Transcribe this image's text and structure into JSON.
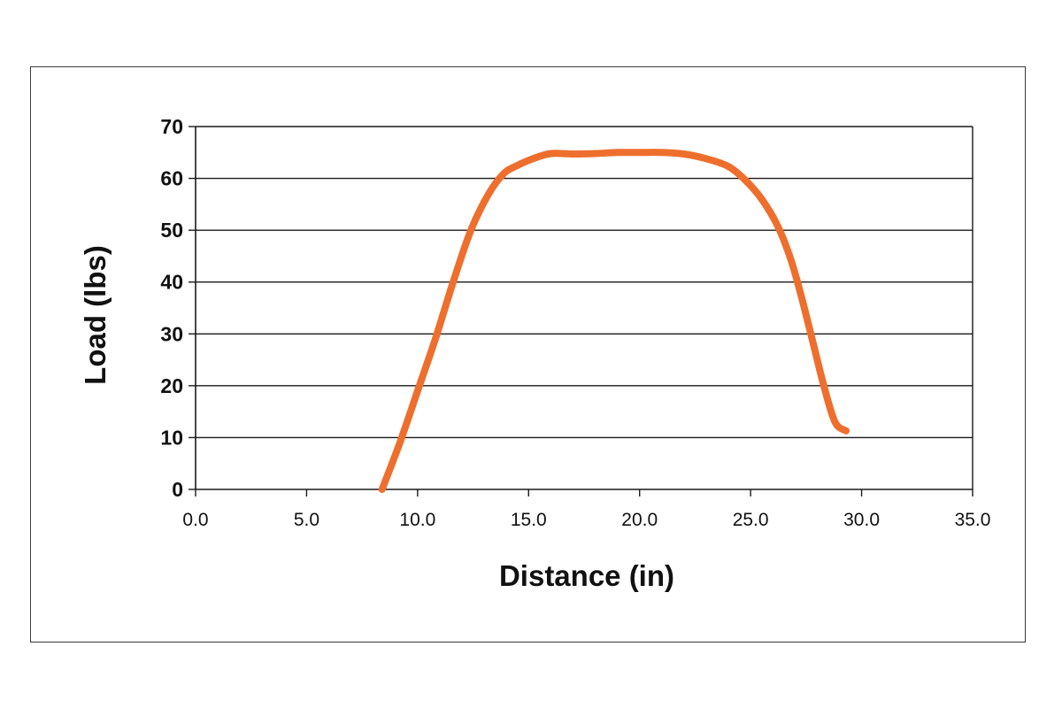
{
  "chart_data": {
    "type": "line",
    "title": "",
    "xlabel": "Distance (in)",
    "ylabel": "Load (lbs)",
    "xlim": [
      0,
      35
    ],
    "ylim": [
      0,
      70
    ],
    "xticks": [
      "0.0",
      "5.0",
      "10.0",
      "15.0",
      "20.0",
      "25.0",
      "30.0",
      "35.0"
    ],
    "yticks": [
      "0",
      "10",
      "20",
      "30",
      "40",
      "50",
      "60",
      "70"
    ],
    "grid": "horizontal",
    "legend": "none",
    "series": [
      {
        "color": "#ee6f2d",
        "x": [
          8.4,
          9.2,
          10.0,
          10.8,
          11.6,
          12.4,
          13.2,
          13.9,
          14.5,
          15.2,
          16.0,
          17.0,
          18.0,
          19.0,
          20.0,
          21.0,
          22.0,
          23.0,
          24.0,
          24.8,
          25.5,
          26.2,
          26.8,
          27.3,
          27.8,
          28.3,
          28.8,
          29.3
        ],
        "y": [
          0,
          9,
          19,
          29,
          40,
          50,
          57,
          61,
          62.5,
          63.8,
          64.8,
          64.7,
          64.8,
          65.0,
          65.0,
          65.0,
          64.7,
          63.8,
          62.3,
          59.5,
          56.0,
          51.0,
          44.5,
          37.0,
          28.5,
          20.0,
          13.0,
          11.3
        ]
      }
    ]
  }
}
